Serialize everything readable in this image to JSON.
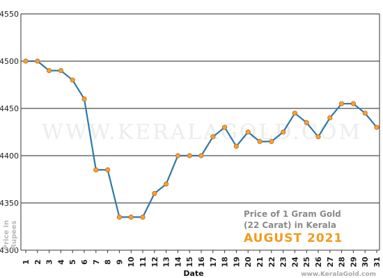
{
  "chart_data": {
    "type": "line",
    "xlabel": "Date",
    "ylabel_lines": [
      "Price in",
      "Rupees"
    ],
    "ylim": [
      4300,
      4550
    ],
    "yticks": [
      4300,
      4350,
      4400,
      4450,
      4500,
      4550
    ],
    "grid": "horizontal",
    "x": [
      "1",
      "2",
      "3",
      "4",
      "5",
      "6",
      "7",
      "8",
      "9",
      "10",
      "11",
      "12",
      "13",
      "14",
      "15",
      "16",
      "17",
      "18",
      "19",
      "20",
      "21",
      "22",
      "23",
      "24",
      "25",
      "26",
      "27",
      "28",
      "29",
      "30",
      "31"
    ],
    "values": [
      4500,
      4500,
      4490,
      4490,
      4480,
      4460,
      4385,
      4385,
      4335,
      4335,
      4335,
      4360,
      4370,
      4400,
      4400,
      4400,
      4420,
      4430,
      4410,
      4425,
      4415,
      4415,
      4425,
      4445,
      4435,
      4420,
      4440,
      4455,
      4455,
      4445,
      4430
    ],
    "colors": {
      "line": "#2f78a8",
      "marker": "#f5a03a",
      "marker_stroke": "#c26a10"
    }
  },
  "caption": {
    "line1": "Price of 1 Gram Gold",
    "line2": "(22 Carat) in Kerala",
    "month": "AUGUST 2021"
  },
  "watermark": "WWW.KERALAGOLD.COM",
  "source": "www.KeralaGold.com"
}
